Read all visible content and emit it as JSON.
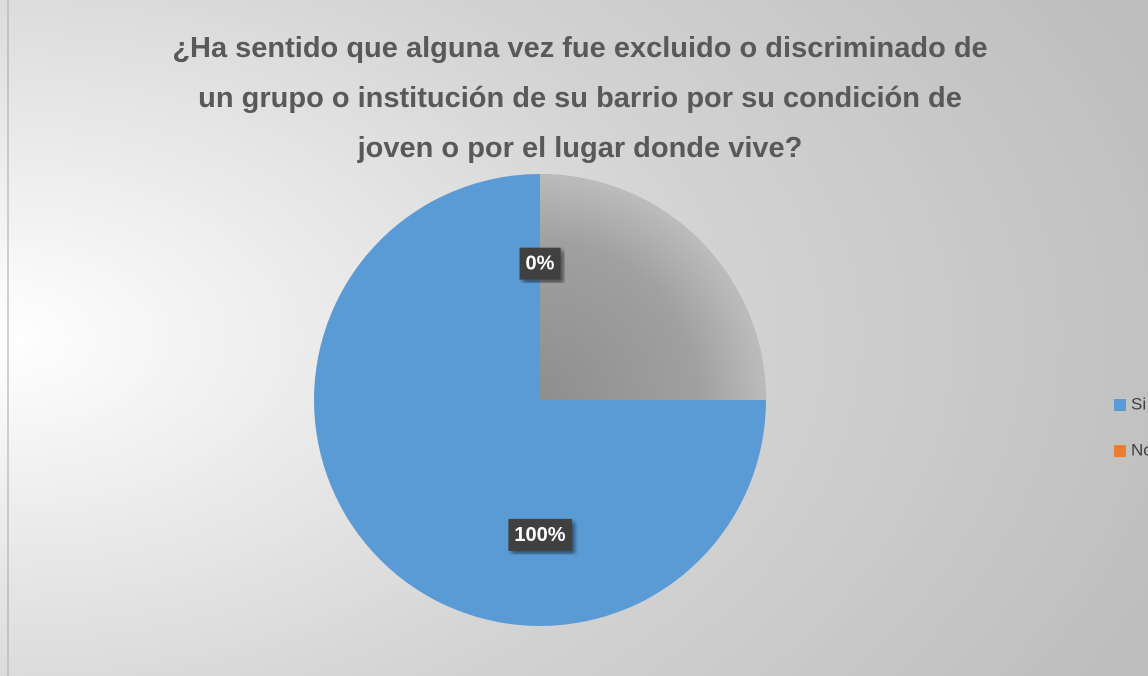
{
  "chart_data": {
    "type": "pie",
    "title": [
      "¿Ha sentido que alguna vez fue excluido o discriminado de",
      "un grupo o institución de su barrio por su condición de",
      "joven o por el lugar donde vive?"
    ],
    "categories": [
      "Si",
      "No"
    ],
    "values": [
      100,
      0
    ],
    "value_labels": [
      "100%",
      "0%"
    ],
    "colors": [
      "#5b9bd5",
      "#ed7d31"
    ],
    "legend": "right"
  }
}
